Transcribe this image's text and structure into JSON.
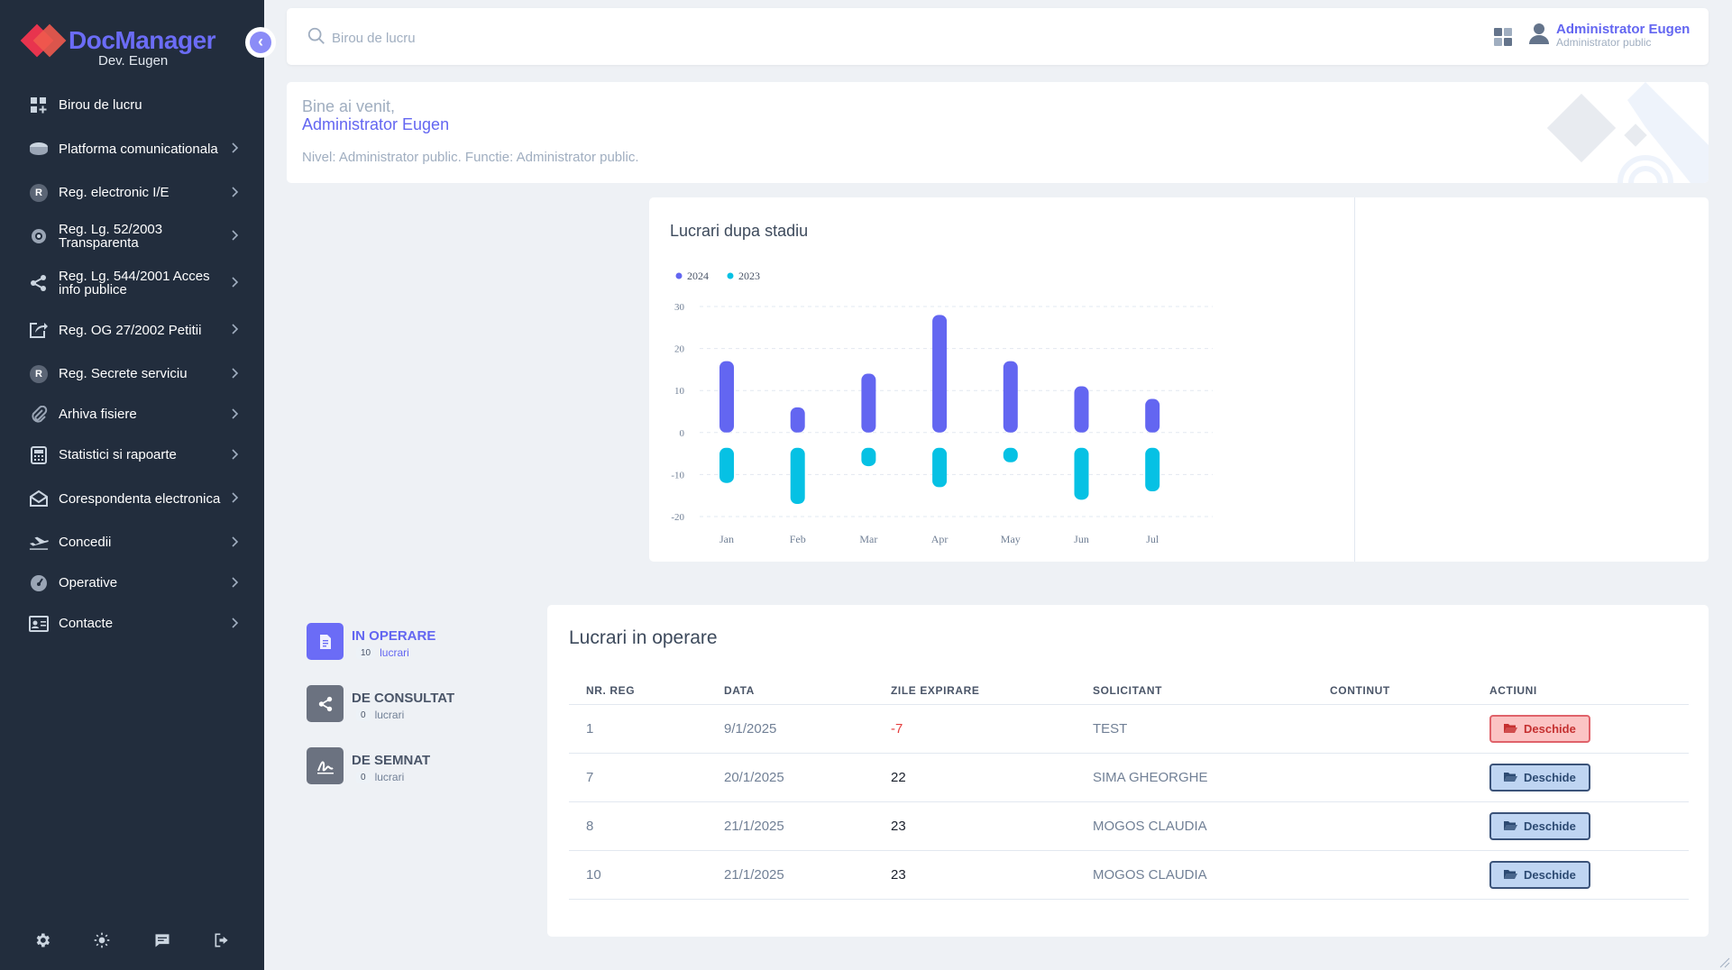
{
  "sidebar": {
    "brand": "DocManager",
    "brand_sub": "Dev. Eugen",
    "items": [
      {
        "label": "Birou de lucru",
        "icon": "dashboard-icon",
        "chev": false
      },
      {
        "label": "Platforma comunicationala",
        "icon": "database-icon",
        "chev": true
      },
      {
        "label": "Reg. electronic I/E",
        "icon": "r-badge-icon",
        "chev": true
      },
      {
        "label": "Reg. Lg. 52/2003 Transparenta",
        "icon": "eye-icon",
        "chev": true
      },
      {
        "label": "Reg. Lg. 544/2001 Acces info publice",
        "icon": "share-icon",
        "chev": true
      },
      {
        "label": "Reg. OG 27/2002 Petitii",
        "icon": "external-icon",
        "chev": true
      },
      {
        "label": "Reg. Secrete serviciu",
        "icon": "r-badge-icon",
        "chev": true
      },
      {
        "label": "Arhiva fisiere",
        "icon": "paperclip-icon",
        "chev": true
      },
      {
        "label": "Statistici si rapoarte",
        "icon": "calculator-icon",
        "chev": true
      },
      {
        "label": "Corespondenta electronica",
        "icon": "envelope-open-icon",
        "chev": true
      },
      {
        "label": "Concedii",
        "icon": "plane-icon",
        "chev": true
      },
      {
        "label": "Operative",
        "icon": "gauge-icon",
        "chev": true
      },
      {
        "label": "Contacte",
        "icon": "id-card-icon",
        "chev": true
      }
    ],
    "r_badge": "R",
    "bottom_icons": [
      "settings-icon",
      "sun-icon",
      "chat-icon",
      "logout-icon"
    ]
  },
  "topbar": {
    "search_placeholder": "Birou de lucru",
    "user_name": "Administrator Eugen",
    "user_role": "Administrator public"
  },
  "welcome": {
    "greeting": "Bine ai venit,",
    "name": "Administrator Eugen",
    "level": "Nivel: Administrator public. Functie: Administrator public."
  },
  "chart_data": {
    "type": "bar",
    "title": "Lucrari dupa stadiu",
    "categories": [
      "Jan",
      "Feb",
      "Mar",
      "Apr",
      "May",
      "Jun",
      "Jul"
    ],
    "series": [
      {
        "name": "2024",
        "color": "#6366f1",
        "values": [
          17,
          6,
          14,
          28,
          17,
          11,
          8
        ]
      },
      {
        "name": "2023",
        "color": "#06c1e4",
        "values": [
          -12,
          -17,
          -8,
          -13,
          -4,
          -16,
          -14
        ]
      }
    ],
    "yticks": [
      "30",
      "20",
      "10",
      "0",
      "-10",
      "-20"
    ],
    "ylim": [
      -20,
      30
    ],
    "grid": true,
    "legend": "top-left"
  },
  "stats": [
    {
      "title": "IN OPERARE",
      "count": "10",
      "unit": "lucrari",
      "color": "#6b6cf6",
      "active": true
    },
    {
      "title": "DE CONSULTAT",
      "count": "0",
      "unit": "lucrari",
      "color": "#6b7280",
      "active": false
    },
    {
      "title": "DE SEMNAT",
      "count": "0",
      "unit": "lucrari",
      "color": "#6b7280",
      "active": false
    }
  ],
  "table": {
    "title": "Lucrari in operare",
    "headers": [
      "NR. REG",
      "DATA",
      "ZILE EXPIRARE",
      "SOLICITANT",
      "CONTINUT",
      "ACTIUNI"
    ],
    "rows": [
      {
        "nr": "1",
        "data": "9/1/2025",
        "zile": "-7",
        "solicitant": "TEST",
        "continut": "",
        "action": "Deschide",
        "style": "red"
      },
      {
        "nr": "7",
        "data": "20/1/2025",
        "zile": "22",
        "solicitant": "SIMA GHEORGHE",
        "continut": "",
        "action": "Deschide",
        "style": "blue"
      },
      {
        "nr": "8",
        "data": "21/1/2025",
        "zile": "23",
        "solicitant": "MOGOS CLAUDIA",
        "continut": "",
        "action": "Deschide",
        "style": "blue"
      },
      {
        "nr": "10",
        "data": "21/1/2025",
        "zile": "23",
        "solicitant": "MOGOS CLAUDIA",
        "continut": "",
        "action": "Deschide",
        "style": "blue"
      }
    ]
  }
}
